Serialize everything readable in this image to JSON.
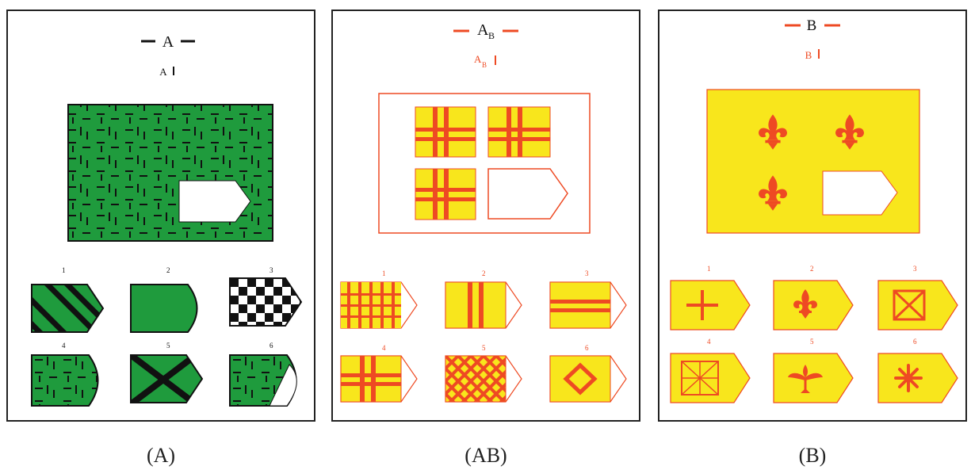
{
  "panels": [
    {
      "id": "A",
      "title": "A",
      "subtitle": "A",
      "color": "#1e9a3c",
      "line_color": "#111111",
      "option_labels": [
        "1",
        "2",
        "3",
        "4",
        "5",
        "6"
      ],
      "caption": "(A)"
    },
    {
      "id": "AB",
      "title": "A",
      "title_sub": "B",
      "subtitle": "A",
      "subtitle_sub": "B",
      "color": "#f8e61c",
      "line_color": "#ee4a23",
      "option_labels": [
        "1",
        "2",
        "3",
        "4",
        "5",
        "6"
      ],
      "caption": "(AB)"
    },
    {
      "id": "B",
      "title": "B",
      "subtitle": "B",
      "color": "#f8e61c",
      "line_color": "#ee4a23",
      "option_labels": [
        "1",
        "2",
        "3",
        "4",
        "5",
        "6"
      ],
      "caption": "(B)"
    }
  ]
}
